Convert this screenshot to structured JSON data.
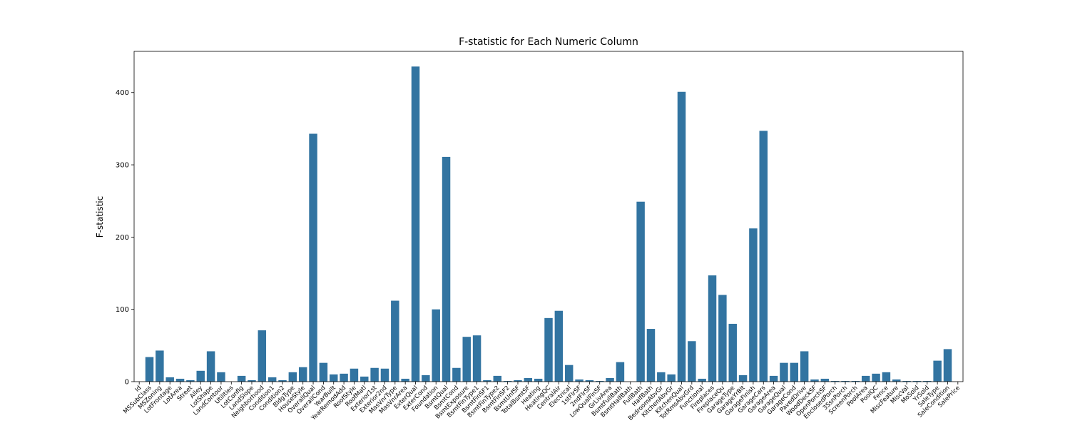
{
  "chart_data": {
    "type": "bar",
    "title": "F-statistic for Each Numeric Column",
    "ylabel": "F-statistic",
    "color": "#3274a1",
    "categories": [
      "Id",
      "MSSubClass",
      "MSZoning",
      "LotFrontage",
      "LotArea",
      "Street",
      "Alley",
      "LotShape",
      "LandContour",
      "Utilities",
      "LotConfig",
      "LandSlope",
      "Neighborhood",
      "Condition1",
      "Condition2",
      "BldgType",
      "HouseStyle",
      "OverallQual",
      "OverallCond",
      "YearBuilt",
      "YearRemodAdd",
      "RoofStyle",
      "RoofMatl",
      "Exterior1st",
      "Exterior2nd",
      "MasVnrType",
      "MasVnrArea",
      "ExterQual",
      "ExterCond",
      "Foundation",
      "BsmtQual",
      "BsmtCond",
      "BsmtExposure",
      "BsmtFinType1",
      "BsmtFinSF1",
      "BsmtFinType2",
      "BsmtFinSF2",
      "BsmtUnfSF",
      "TotalBsmtSF",
      "Heating",
      "HeatingQC",
      "CentralAir",
      "Electrical",
      "1stFlrSF",
      "2ndFlrSF",
      "LowQualFinSF",
      "GrLivArea",
      "BsmtFullBath",
      "BsmtHalfBath",
      "FullBath",
      "HalfBath",
      "BedroomAbvGr",
      "KitchenAbvGr",
      "KitchenQual",
      "TotRmsAbvGrd",
      "Functional",
      "Fireplaces",
      "FireplaceQu",
      "GarageType",
      "GarageYrBlt",
      "GarageFinish",
      "GarageCars",
      "GarageArea",
      "GarageQual",
      "GarageCond",
      "PavedDrive",
      "WoodDeckSF",
      "OpenPorchSF",
      "EnclosedPorch",
      "3SsnPorch",
      "ScreenPorch",
      "PoolArea",
      "PoolQC",
      "Fence",
      "MiscFeature",
      "MiscVal",
      "MoSold",
      "YrSold",
      "SaleType",
      "SaleCondition",
      "SalePrice"
    ],
    "values": [
      0,
      34,
      43,
      6,
      4,
      2,
      15,
      42,
      13,
      0,
      8,
      2,
      71,
      6,
      2,
      13,
      20,
      343,
      26,
      10,
      11,
      18,
      7,
      19,
      18,
      112,
      4,
      436,
      9,
      100,
      311,
      19,
      62,
      64,
      2,
      8,
      1,
      2,
      5,
      4,
      88,
      98,
      23,
      3,
      2,
      1,
      5,
      27,
      0,
      249,
      73,
      13,
      10,
      401,
      56,
      4,
      147,
      120,
      80,
      9,
      212,
      347,
      8,
      26,
      26,
      42,
      3,
      4,
      1,
      1,
      1,
      8,
      11,
      13,
      3,
      1,
      1,
      1,
      29,
      45,
      0
    ],
    "ylim": [
      0,
      457
    ],
    "yticks": [
      0,
      100,
      200,
      300,
      400
    ]
  }
}
